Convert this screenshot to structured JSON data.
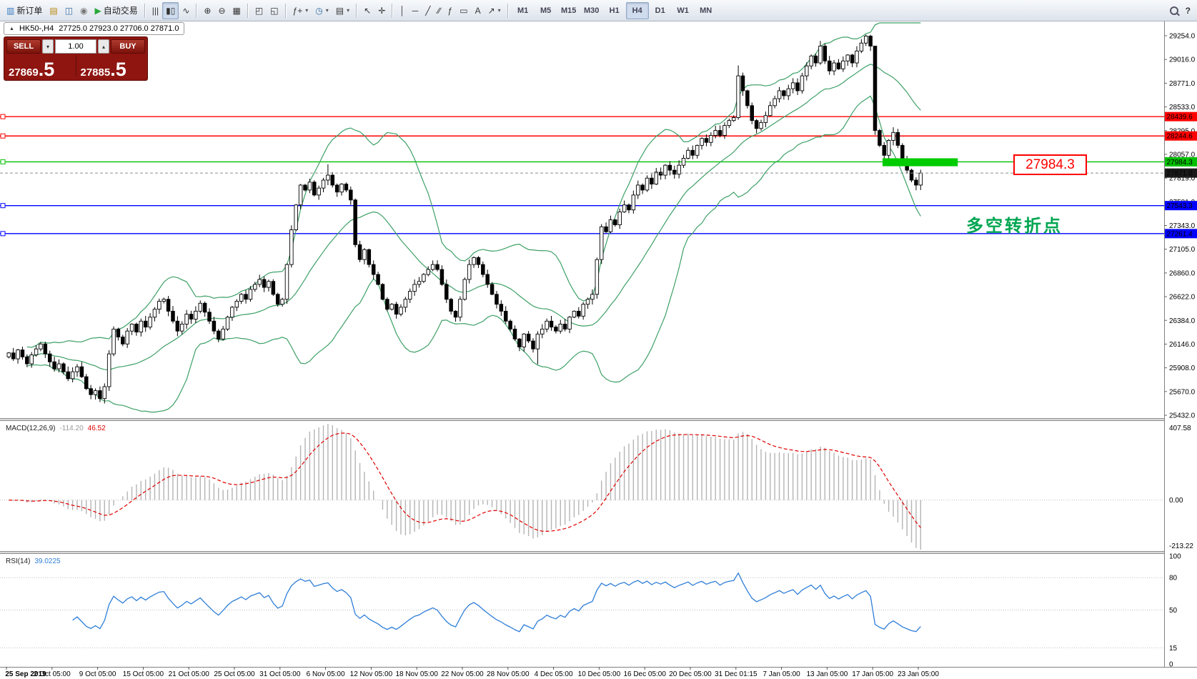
{
  "toolbar": {
    "groups": [
      {
        "name": "standard",
        "items": [
          {
            "name": "new-order-button",
            "glyph": "▥",
            "glyph_color": "#3a7abf",
            "label": "新订单"
          },
          {
            "name": "new-chart-icon",
            "glyph": "▤",
            "glyph_color": "#b8860b"
          },
          {
            "name": "profiles-icon",
            "glyph": "◫",
            "glyph_color": "#3a6ea5"
          },
          {
            "name": "alerts-icon",
            "glyph": "◉",
            "glyph_color": "#777777"
          },
          {
            "name": "auto-trading-button",
            "glyph": "▶",
            "glyph_color": "#27a83b",
            "label": "自动交易"
          }
        ]
      },
      {
        "name": "chart-type",
        "items": [
          {
            "name": "ohlc-bars-button",
            "glyph": "|||"
          },
          {
            "name": "candlestick-button",
            "glyph": "▮▯",
            "active": true
          },
          {
            "name": "line-chart-button",
            "glyph": "∿"
          }
        ]
      },
      {
        "name": "zoom",
        "items": [
          {
            "name": "zoom-in-button",
            "glyph": "⊕"
          },
          {
            "name": "zoom-out-button",
            "glyph": "⊖"
          },
          {
            "name": "grid-button",
            "glyph": "▦"
          }
        ]
      },
      {
        "name": "windows",
        "items": [
          {
            "name": "tile-windows-button",
            "glyph": "◰"
          },
          {
            "name": "cascade-windows-button",
            "glyph": "◱"
          }
        ]
      },
      {
        "name": "objects",
        "items": [
          {
            "name": "indicators-button",
            "glyph": "ƒ+",
            "dropdown": true
          },
          {
            "name": "periods-button",
            "glyph": "◷",
            "glyph_color": "#2e6da4",
            "dropdown": true
          },
          {
            "name": "templates-button",
            "glyph": "▤",
            "dropdown": true
          }
        ]
      },
      {
        "name": "cursor",
        "items": [
          {
            "name": "cursor-button",
            "glyph": "↖"
          },
          {
            "name": "crosshair-button",
            "glyph": "✛"
          }
        ]
      },
      {
        "name": "line-studies",
        "items": [
          {
            "name": "vertical-line-button",
            "glyph": "│"
          },
          {
            "name": "horizontal-line-button",
            "glyph": "─"
          },
          {
            "name": "trendline-button",
            "glyph": "╱"
          },
          {
            "name": "channel-button",
            "glyph": "∕∕"
          },
          {
            "name": "fibonacci-button",
            "glyph": "ƒ"
          },
          {
            "name": "shapes-button",
            "glyph": "▭"
          },
          {
            "name": "text-button",
            "glyph": "A"
          },
          {
            "name": "arrows-button",
            "glyph": "↗",
            "dropdown": true
          }
        ]
      }
    ],
    "timeframes": {
      "items": [
        "M1",
        "M5",
        "M15",
        "M30",
        "H1",
        "H4",
        "D1",
        "W1",
        "MN"
      ],
      "active": "H4"
    },
    "dropdown_glyph": "▾",
    "help_glyph": "?"
  },
  "symbol_header": {
    "collapse_glyph": "▲",
    "title": "HK50-,H4",
    "ohlc": "27725.0 27923.0 27706.0 27871.0"
  },
  "trade_panel": {
    "sell_label": "SELL",
    "buy_label": "BUY",
    "volume": "1.00",
    "spin_down": "▾",
    "spin_up": "▴",
    "sell_price_small": "27869",
    "sell_price_big": ".5",
    "buy_price_small": "27885",
    "buy_price_big": ".5",
    "panel_color": "#8e1510"
  },
  "hlines": [
    {
      "price": 28439.6,
      "label": "28439.6",
      "color": "#ff0000"
    },
    {
      "price": 28244.6,
      "label": "28244.6",
      "color": "#ff0000"
    },
    {
      "price": 27984.3,
      "label": "27984.3",
      "color": "#00c000"
    },
    {
      "price": 27543.3,
      "label": "27543.3",
      "color": "#0000ff"
    },
    {
      "price": 27261.4,
      "label": "27261.4",
      "color": "#0000ff"
    }
  ],
  "current_price": {
    "value": 27871.0,
    "label": "27871.0",
    "badge_color": "#1a1a1a",
    "line_color": "#8c8c8c"
  },
  "annotations": {
    "price_label": "27984.3",
    "callout_color": "#ff0000",
    "turning_point_text": "多空转折点",
    "turning_point_color": "#00a651",
    "highlight_rect": {
      "color": "#00cc00",
      "price_top": 28020,
      "price_bottom": 27940,
      "start_index": 192,
      "end_index": 208.5
    }
  },
  "indicator_macd": {
    "name": "MACD(12,26,9)",
    "value_main": "-114.20",
    "value_signal": "46.52",
    "axis_labels": [
      "407.58",
      "0.00",
      "-213.22"
    ],
    "histogram_color": "#b4b4b4",
    "signal_color": "#e00000",
    "params": [
      12,
      26,
      9
    ]
  },
  "indicator_rsi": {
    "name": "RSI(14)",
    "value": "39.0225",
    "axis_labels": [
      "100",
      "80",
      "50",
      "15",
      "0"
    ],
    "levels": [
      80,
      50,
      15
    ],
    "line_color": "#2f7ed8",
    "period": 14
  },
  "time_axis": {
    "labels": [
      "25 Sep 2019",
      "2 Oct 05:00",
      "9 Oct 05:00",
      "15 Oct 05:00",
      "21 Oct 05:00",
      "25 Oct 05:00",
      "31 Oct 05:00",
      "6 Nov 05:00",
      "12 Nov 05:00",
      "18 Nov 05:00",
      "22 Nov 05:00",
      "28 Nov 05:00",
      "4 Dec 05:00",
      "10 Dec 05:00",
      "16 Dec 05:00",
      "20 Dec 05:00",
      "31 Dec 01:15",
      "7 Jan 05:00",
      "13 Jan 05:00",
      "17 Jan 05:00",
      "23 Jan 05:00"
    ]
  },
  "chart_data": {
    "type": "candlestick",
    "symbol": "HK50-",
    "period": "H4",
    "note": "approximate OHLC path read from screenshot",
    "price_axis": {
      "min": 25432,
      "max": 29254,
      "labels": [
        "29254.0",
        "29016.0",
        "28771.0",
        "28533.0",
        "28295.0",
        "28057.0",
        "27819.0",
        "27581.0",
        "27343.0",
        "27105.0",
        "26860.0",
        "26622.0",
        "26384.0",
        "26146.0",
        "25908.0",
        "25670.0",
        "25432.0"
      ]
    },
    "first_open": 26020,
    "closes": [
      26060,
      26000,
      26090,
      26020,
      25950,
      26040,
      26100,
      26150,
      26050,
      25970,
      25900,
      25950,
      25870,
      25800,
      25870,
      25920,
      25820,
      25700,
      25640,
      25680,
      25600,
      25720,
      26050,
      26300,
      26220,
      26150,
      26280,
      26350,
      26270,
      26380,
      26320,
      26420,
      26500,
      26580,
      26600,
      26480,
      26380,
      26280,
      26350,
      26450,
      26400,
      26480,
      26560,
      26470,
      26380,
      26280,
      26200,
      26300,
      26420,
      26520,
      26580,
      26650,
      26600,
      26700,
      26750,
      26800,
      26720,
      26780,
      26650,
      26550,
      26600,
      26950,
      27300,
      27550,
      27750,
      27700,
      27780,
      27650,
      27720,
      27800,
      27850,
      27750,
      27680,
      27760,
      27700,
      27600,
      27150,
      27000,
      27100,
      26950,
      26850,
      26750,
      26600,
      26500,
      26550,
      26450,
      26520,
      26600,
      26680,
      26750,
      26780,
      26850,
      26900,
      26950,
      26900,
      26750,
      26600,
      26480,
      26420,
      26600,
      26800,
      26950,
      27020,
      26950,
      26850,
      26750,
      26650,
      26550,
      26480,
      26380,
      26300,
      26200,
      26120,
      26250,
      26180,
      26100,
      26250,
      26300,
      26380,
      26320,
      26280,
      26350,
      26300,
      26420,
      26480,
      26430,
      26550,
      26600,
      26650,
      27000,
      27330,
      27280,
      27400,
      27350,
      27480,
      27550,
      27500,
      27650,
      27750,
      27700,
      27820,
      27760,
      27880,
      27850,
      27950,
      27900,
      27860,
      27950,
      28020,
      28100,
      28050,
      28150,
      28220,
      28180,
      28250,
      28300,
      28250,
      28350,
      28400,
      28430,
      28850,
      28700,
      28550,
      28400,
      28320,
      28380,
      28450,
      28550,
      28620,
      28700,
      28650,
      28720,
      28780,
      28700,
      28850,
      28950,
      29050,
      28980,
      29150,
      29000,
      28900,
      28980,
      28920,
      29000,
      29060,
      28980,
      29100,
      29180,
      29250,
      29150,
      28300,
      28150,
      28050,
      28200,
      28280,
      28150,
      28000,
      27900,
      27800,
      27750,
      27871
    ],
    "wick_overrides": {
      "20": {
        "low": 25565
      },
      "70": {
        "high": 27960
      },
      "116": {
        "low": 25945
      },
      "160": {
        "high": 28955
      },
      "188": {
        "high": 29265
      },
      "190": {
        "high": 29120,
        "low": 28255
      },
      "200": {
        "low": 27700
      }
    },
    "bull_color": "#ffffff",
    "bear_color": "#000000",
    "outline_color": "#000000",
    "bollinger": {
      "period": 20,
      "deviation": 2,
      "color": "#3da066"
    }
  }
}
